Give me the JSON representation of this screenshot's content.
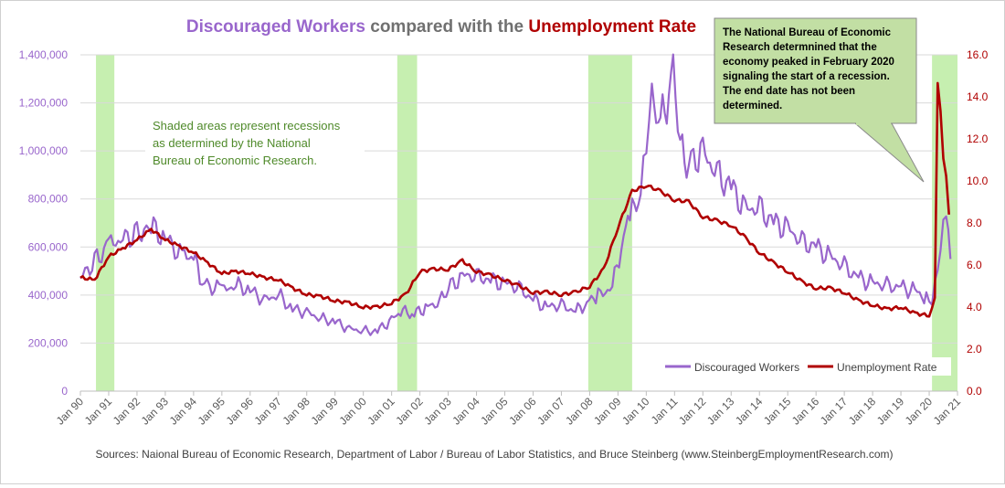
{
  "colors": {
    "discouraged": "#9966CC",
    "unemployment": "#B00000",
    "recession": "#C6EFB0",
    "note_text": "#4F8A2A",
    "callout_fill": "#C2DFA4",
    "title_gray": "#707070",
    "grid": "#d9d9d9"
  },
  "chart_data": {
    "type": "line",
    "title_parts": [
      {
        "text": "Discouraged  Workers",
        "color": "#9966CC"
      },
      {
        "text": "  compared  with  the  ",
        "color": "#707070"
      },
      {
        "text": "Unemployment  Rate",
        "color": "#B00000"
      }
    ],
    "x_tick_labels": [
      "Jan 90",
      "Jan 91",
      "Jan 92",
      "Jan 93",
      "Jan 94",
      "Jan 95",
      "Jan 96",
      "Jan 97",
      "Jan 98",
      "Jan 99",
      "Jan 00",
      "Jan 01",
      "Jan 02",
      "Jan 03",
      "Jan 04",
      "Jan 05",
      "Jan 06",
      "Jan 07",
      "Jan 08",
      "Jan 09",
      "Jan 10",
      "Jan 11",
      "Jan 12",
      "Jan 13",
      "Jan 14",
      "Jan 15",
      "Jan 16",
      "Jan 17",
      "Jan 18",
      "Jan 19",
      "Jan 20",
      "Jan 21"
    ],
    "xlim": [
      1990.0,
      2021.0
    ],
    "y_left": {
      "lim": [
        0,
        1400000
      ],
      "ticks": [
        "0",
        "200,000",
        "400,000",
        "600,000",
        "800,000",
        "1,000,000",
        "1,200,000",
        "1,400,000"
      ]
    },
    "y_right": {
      "lim": [
        0,
        16
      ],
      "ticks": [
        "0.0",
        "2.0",
        "4.0",
        "6.0",
        "8.0",
        "10.0",
        "12.0",
        "14.0",
        "16.0"
      ]
    },
    "grid": "horizontal",
    "recessions": [
      [
        1990.55,
        1991.2
      ],
      [
        2001.2,
        2001.9
      ],
      [
        2007.95,
        2009.5
      ],
      [
        2020.1,
        2021.0
      ]
    ],
    "series": [
      {
        "name": "Discouraged Workers",
        "axis": "left",
        "points": [
          [
            1990.0,
            470000
          ],
          [
            1991.0,
            610000
          ],
          [
            1992.5,
            680000
          ],
          [
            1993.0,
            640000
          ],
          [
            1993.6,
            560000
          ],
          [
            1994.0,
            560000
          ],
          [
            1994.3,
            450000
          ],
          [
            1995.0,
            420000
          ],
          [
            1995.5,
            440000
          ],
          [
            1996.0,
            420000
          ],
          [
            1996.5,
            380000
          ],
          [
            1997.0,
            400000
          ],
          [
            1997.5,
            340000
          ],
          [
            1998.0,
            330000
          ],
          [
            1998.5,
            300000
          ],
          [
            1999.0,
            290000
          ],
          [
            1999.5,
            260000
          ],
          [
            2000.0,
            250000
          ],
          [
            2000.5,
            250000
          ],
          [
            2001.0,
            300000
          ],
          [
            2001.4,
            330000
          ],
          [
            2001.8,
            320000
          ],
          [
            2002.2,
            350000
          ],
          [
            2002.7,
            370000
          ],
          [
            2003.0,
            430000
          ],
          [
            2003.5,
            480000
          ],
          [
            2004.0,
            480000
          ],
          [
            2004.5,
            460000
          ],
          [
            2005.0,
            450000
          ],
          [
            2005.5,
            430000
          ],
          [
            2006.0,
            380000
          ],
          [
            2006.5,
            350000
          ],
          [
            2007.0,
            360000
          ],
          [
            2007.5,
            330000
          ],
          [
            2007.9,
            370000
          ],
          [
            2008.3,
            400000
          ],
          [
            2008.8,
            430000
          ],
          [
            2009.2,
            650000
          ],
          [
            2009.5,
            750000
          ],
          [
            2009.8,
            800000
          ],
          [
            2010.0,
            1000000
          ],
          [
            2010.2,
            1200000
          ],
          [
            2010.5,
            1100000
          ],
          [
            2010.8,
            1250000
          ],
          [
            2010.95,
            1320000
          ],
          [
            2011.2,
            1000000
          ],
          [
            2011.5,
            950000
          ],
          [
            2012.0,
            1000000
          ],
          [
            2012.5,
            900000
          ],
          [
            2013.0,
            850000
          ],
          [
            2013.5,
            760000
          ],
          [
            2014.0,
            760000
          ],
          [
            2014.5,
            700000
          ],
          [
            2015.0,
            680000
          ],
          [
            2015.5,
            620000
          ],
          [
            2016.0,
            600000
          ],
          [
            2016.5,
            560000
          ],
          [
            2017.0,
            520000
          ],
          [
            2017.5,
            470000
          ],
          [
            2018.0,
            450000
          ],
          [
            2018.5,
            440000
          ],
          [
            2019.0,
            430000
          ],
          [
            2019.5,
            420000
          ],
          [
            2019.9,
            380000
          ],
          [
            2020.1,
            350000
          ],
          [
            2020.3,
            500000
          ],
          [
            2020.5,
            660000
          ],
          [
            2020.6,
            700000
          ],
          [
            2020.75,
            550000
          ]
        ]
      },
      {
        "name": "Unemployment Rate",
        "axis": "right",
        "points": [
          [
            1990.0,
            5.4
          ],
          [
            1990.5,
            5.3
          ],
          [
            1991.0,
            6.4
          ],
          [
            1991.5,
            6.8
          ],
          [
            1992.0,
            7.2
          ],
          [
            1992.5,
            7.7
          ],
          [
            1993.0,
            7.2
          ],
          [
            1993.5,
            6.9
          ],
          [
            1994.0,
            6.6
          ],
          [
            1994.5,
            6.1
          ],
          [
            1995.0,
            5.6
          ],
          [
            1995.5,
            5.7
          ],
          [
            1996.0,
            5.6
          ],
          [
            1996.5,
            5.4
          ],
          [
            1997.0,
            5.3
          ],
          [
            1997.5,
            4.9
          ],
          [
            1998.0,
            4.6
          ],
          [
            1998.5,
            4.5
          ],
          [
            1999.0,
            4.3
          ],
          [
            1999.5,
            4.2
          ],
          [
            2000.0,
            4.0
          ],
          [
            2000.5,
            4.0
          ],
          [
            2001.0,
            4.2
          ],
          [
            2001.5,
            4.6
          ],
          [
            2002.0,
            5.7
          ],
          [
            2002.5,
            5.8
          ],
          [
            2003.0,
            5.8
          ],
          [
            2003.5,
            6.2
          ],
          [
            2004.0,
            5.7
          ],
          [
            2004.5,
            5.5
          ],
          [
            2005.0,
            5.3
          ],
          [
            2005.5,
            5.0
          ],
          [
            2006.0,
            4.7
          ],
          [
            2006.5,
            4.7
          ],
          [
            2007.0,
            4.6
          ],
          [
            2007.5,
            4.7
          ],
          [
            2008.0,
            5.0
          ],
          [
            2008.5,
            5.8
          ],
          [
            2009.0,
            7.8
          ],
          [
            2009.5,
            9.5
          ],
          [
            2010.0,
            9.8
          ],
          [
            2010.5,
            9.5
          ],
          [
            2011.0,
            9.1
          ],
          [
            2011.5,
            9.0
          ],
          [
            2012.0,
            8.3
          ],
          [
            2012.5,
            8.1
          ],
          [
            2013.0,
            7.9
          ],
          [
            2013.5,
            7.3
          ],
          [
            2014.0,
            6.6
          ],
          [
            2014.5,
            6.1
          ],
          [
            2015.0,
            5.7
          ],
          [
            2015.5,
            5.2
          ],
          [
            2016.0,
            4.9
          ],
          [
            2016.5,
            4.9
          ],
          [
            2017.0,
            4.7
          ],
          [
            2017.5,
            4.3
          ],
          [
            2018.0,
            4.1
          ],
          [
            2018.5,
            3.9
          ],
          [
            2019.0,
            4.0
          ],
          [
            2019.5,
            3.7
          ],
          [
            2020.0,
            3.6
          ],
          [
            2020.2,
            4.4
          ],
          [
            2020.3,
            14.7
          ],
          [
            2020.4,
            13.3
          ],
          [
            2020.5,
            11.1
          ],
          [
            2020.6,
            10.2
          ],
          [
            2020.7,
            8.4
          ]
        ]
      }
    ],
    "legend": {
      "placement": "bottom-right",
      "entries": [
        "Discouraged Workers",
        "Unemployment Rate"
      ]
    },
    "annotations": {
      "shaded_note": [
        "Shaded areas represent recessions",
        "as determined by the National",
        "Bureau of Economic Research."
      ],
      "callout": [
        "The National Bureau of Economic",
        "Research determnined that the",
        "economy peaked in February 2020",
        "signaling the start of a recession.",
        "The end date has not been",
        "determined."
      ]
    },
    "source": "Sources: Naional Bureau of Economic Research, Department of Labor / Bureau of Labor Statistics, and Bruce Steinberg (www.SteinbergEmploymentResearch.com)"
  }
}
